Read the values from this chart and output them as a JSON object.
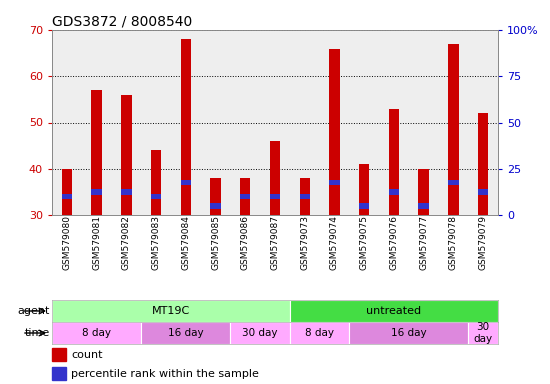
{
  "title": "GDS3872 / 8008540",
  "samples": [
    "GSM579080",
    "GSM579081",
    "GSM579082",
    "GSM579083",
    "GSM579084",
    "GSM579085",
    "GSM579086",
    "GSM579087",
    "GSM579073",
    "GSM579074",
    "GSM579075",
    "GSM579076",
    "GSM579077",
    "GSM579078",
    "GSM579079"
  ],
  "count_values": [
    40,
    57,
    56,
    44,
    68,
    38,
    38,
    46,
    38,
    66,
    41,
    53,
    40,
    67,
    52
  ],
  "percentile_values": [
    34,
    35,
    35,
    34,
    37,
    32,
    34,
    34,
    34,
    37,
    32,
    35,
    32,
    37,
    35
  ],
  "ylim_left": [
    30,
    70
  ],
  "ylim_right": [
    0,
    100
  ],
  "yticks_left": [
    30,
    40,
    50,
    60,
    70
  ],
  "yticks_right": [
    0,
    25,
    50,
    75,
    100
  ],
  "ytick_labels_right": [
    "0",
    "25",
    "50",
    "75",
    "100%"
  ],
  "bar_color_count": "#cc0000",
  "bar_color_pct": "#3333cc",
  "bar_width": 0.35,
  "grid_color": "#000000",
  "bg_color": "#ffffff",
  "plot_bg_color": "#eeeeee",
  "agent_row": [
    {
      "label": "MT19C",
      "start": 0,
      "end": 8,
      "color": "#aaffaa"
    },
    {
      "label": "untreated",
      "start": 8,
      "end": 15,
      "color": "#44dd44"
    }
  ],
  "time_row": [
    {
      "label": "8 day",
      "start": 0,
      "end": 3,
      "color": "#ffaaff"
    },
    {
      "label": "16 day",
      "start": 3,
      "end": 6,
      "color": "#dd88dd"
    },
    {
      "label": "30 day",
      "start": 6,
      "end": 8,
      "color": "#ffaaff"
    },
    {
      "label": "8 day",
      "start": 8,
      "end": 10,
      "color": "#ffaaff"
    },
    {
      "label": "16 day",
      "start": 10,
      "end": 14,
      "color": "#dd88dd"
    },
    {
      "label": "30\nday",
      "start": 14,
      "end": 15,
      "color": "#ffaaff"
    }
  ],
  "legend_count_label": "count",
  "legend_pct_label": "percentile rank within the sample",
  "left_tick_color": "#cc0000",
  "right_tick_color": "#0000cc",
  "title_fontsize": 10,
  "row_label_fontsize": 8,
  "bar_label_fontsize": 6.5
}
